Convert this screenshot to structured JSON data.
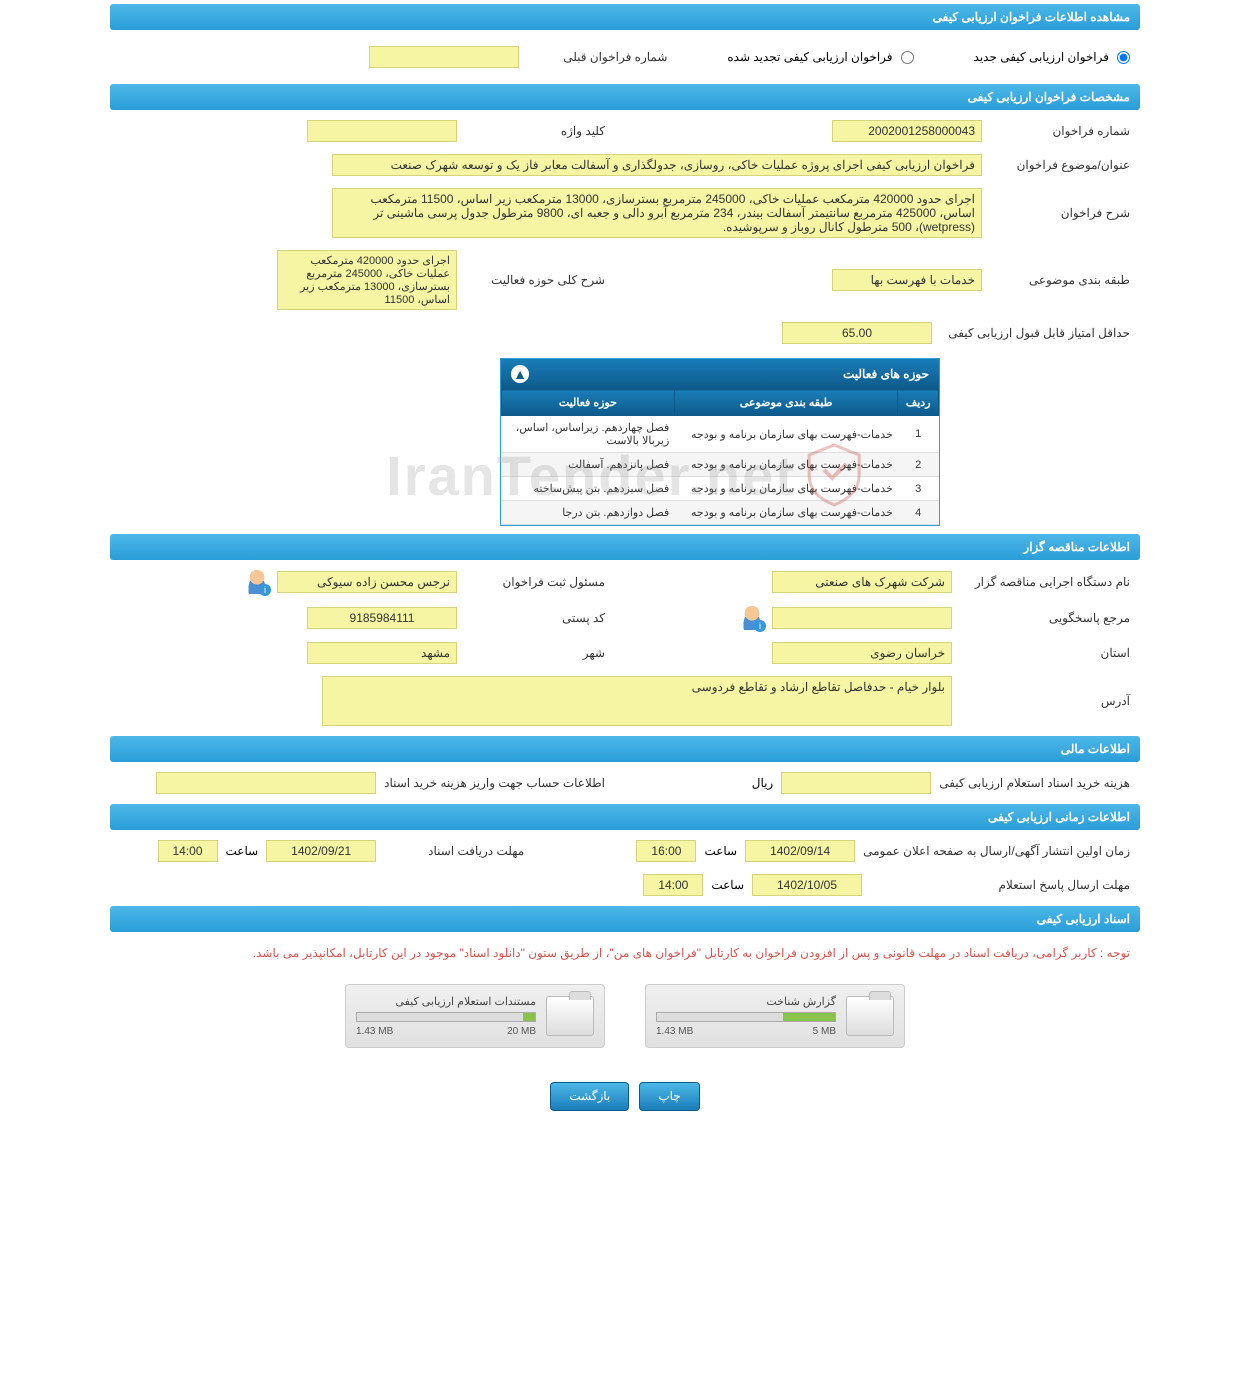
{
  "headers": {
    "main": "مشاهده اطلاعات فراخوان ارزیابی کیفی",
    "specs": "مشخصات فراخوان ارزیابی کیفی",
    "tenderer": "اطلاعات مناقصه گزار",
    "financial": "اطلاعات مالی",
    "timing": "اطلاعات زمانی ارزیابی کیفی",
    "docs": "اسناد ارزیابی کیفی"
  },
  "radio": {
    "new": "فراخوان ارزیابی کیفی جدید",
    "renewed": "فراخوان ارزیابی کیفی تجدید شده",
    "prev_label": "شماره فراخوان قبلی",
    "prev_value": ""
  },
  "specs": {
    "number_label": "شماره فراخوان",
    "number": "2002001258000043",
    "keyword_label": "کلید واژه",
    "keyword": "",
    "title_label": "عنوان/موضوع فراخوان",
    "title": "فراخوان ارزیابی کیفی اجرای پروژه عملیات خاکی، روسازی، جدولگذاری و آسفالت معابر فاز یک و توسعه شهرک صنعت",
    "desc_label": "شرح فراخوان",
    "desc": "اجرای حدود 420000 مترمکعب عملیات خاکی، 245000 مترمربع بسترسازی، 13000 مترمکعب زیر اساس، 11500 مترمکعب اساس، 425000 مترمربع سانتیمتر آسفالت بیندر، 234 مترمربع آبرو دالی و جعبه ای، 9800 مترطول جدول پرسی ماشینی تر (wetpress)، 500 مترطول کانال روباز و سرپوشیده.",
    "cat_label": "طبقه بندی موضوعی",
    "cat": "خدمات با فهرست بها",
    "overall_label": "شرح کلی حوزه فعالیت",
    "overall": "اجرای حدود 420000 مترمکعب عملیات خاکی، 245000 مترمربع بسترسازی، 13000 مترمکعب زیر اساس، 11500",
    "minscore_label": "حداقل امتیاز قابل قبول ارزیابی کیفی",
    "minscore": "65.00"
  },
  "activity": {
    "title": "حوزه های فعالیت",
    "col_idx": "ردیف",
    "col_cat": "طبقه بندی موضوعی",
    "col_act": "حوزه فعالیت",
    "rows": [
      {
        "i": "1",
        "cat": "خدمات-فهرست بهای سازمان برنامه و بودجه",
        "act": "فصل چهاردهم. زیراساس، اساس، زیربالا بالاست"
      },
      {
        "i": "2",
        "cat": "خدمات-فهرست بهای سازمان برنامه و بودجه",
        "act": "فصل پانزدهم. آسفالت"
      },
      {
        "i": "3",
        "cat": "خدمات-فهرست بهای سازمان برنامه و بودجه",
        "act": "فصل سیزدهم. بتن پیش‌ساخته"
      },
      {
        "i": "4",
        "cat": "خدمات-فهرست بهای سازمان برنامه و بودجه",
        "act": "فصل دوازدهم. بتن درجا"
      }
    ]
  },
  "tenderer": {
    "org_label": "نام دستگاه اجرایی مناقصه گزار",
    "org": "شرکت شهرک های صنعتی",
    "reg_label": "مسئول ثبت فراخوان",
    "reg": "نرجس محسن زاده سیوکی",
    "resp_label": "مرجع پاسخگویی",
    "resp": "",
    "postal_label": "کد پستی",
    "postal": "9185984111",
    "province_label": "استان",
    "province": "خراسان رضوی",
    "city_label": "شهر",
    "city": "مشهد",
    "address_label": "آدرس",
    "address": "بلوار خیام - حدفاصل تقاطع ارشاد و تقاطع فردوسی"
  },
  "financial": {
    "cost_label": "هزینه خرید اسناد استعلام ارزیابی کیفی",
    "cost": "",
    "unit": "ریال",
    "account_label": "اطلاعات حساب جهت واریز هزینه خرید اسناد",
    "account": ""
  },
  "timing": {
    "pub_label": "زمان اولین انتشار آگهی/ارسال به صفحه اعلان عمومی",
    "pub_date": "1402/09/14",
    "time_label": "ساعت",
    "pub_time": "16:00",
    "deadline_label": "مهلت دریافت اسناد",
    "deadline_date": "1402/09/21",
    "deadline_time": "14:00",
    "resp_label": "مهلت ارسال پاسخ استعلام",
    "resp_date": "1402/10/05",
    "resp_time": "14:00"
  },
  "docs": {
    "notice": "توجه : کاربر گرامی، دریافت اسناد در مهلت قانونی و پس از افزودن فراخوان به کارتابل \"فراخوان های من\"، از طریق ستون \"دانلود اسناد\" موجود در این کارتابل، امکانپذیر می باشد.",
    "f1_title": "گزارش شناخت",
    "f1_used": "1.43 MB",
    "f1_total": "5 MB",
    "f1_pct": 29,
    "f2_title": "مستندات استعلام ارزیابی کیفی",
    "f2_used": "1.43 MB",
    "f2_total": "20 MB",
    "f2_pct": 7
  },
  "buttons": {
    "print": "چاپ",
    "back": "بازگشت"
  },
  "colors": {
    "header_bg": "#2a9ed8",
    "field_bg": "#f5f5a3"
  }
}
